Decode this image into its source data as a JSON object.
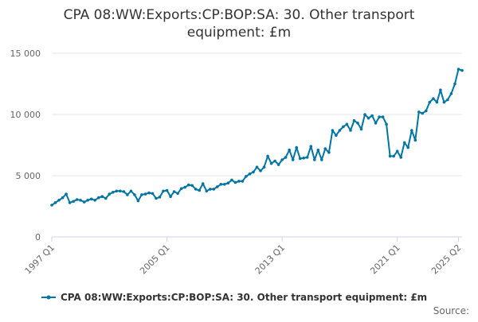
{
  "chart_data": {
    "type": "line",
    "title": "CPA 08:WW:Exports:CP:BOP:SA: 30. Other transport equipment: £m",
    "title_lines": [
      "CPA 08:WW:Exports:CP:BOP:SA: 30. Other transport",
      "equipment: £m"
    ],
    "xlabel": "",
    "ylabel": "",
    "grid": true,
    "legend_position": "bottom",
    "ylim": [
      0,
      15000
    ],
    "y_ticks": [
      {
        "value": 0,
        "label": "0"
      },
      {
        "value": 5000,
        "label": "5 000"
      },
      {
        "value": 10000,
        "label": "10 000"
      },
      {
        "value": 15000,
        "label": "15 000"
      }
    ],
    "x_ticks": [
      {
        "index": 0,
        "label": "1997 Q1"
      },
      {
        "index": 32,
        "label": "2005 Q1"
      },
      {
        "index": 64,
        "label": "2013 Q1"
      },
      {
        "index": 96,
        "label": "2021 Q1"
      },
      {
        "index": 113,
        "label": "2025 Q2"
      }
    ],
    "series": [
      {
        "name": "CPA 08:WW:Exports:CP:BOP:SA: 30. Other transport equipment: £m",
        "color": "#0075a3",
        "start": "1997 Q1",
        "frequency": "quarterly",
        "values": [
          2600,
          2800,
          3000,
          3200,
          3500,
          2800,
          2900,
          3050,
          3000,
          2850,
          3000,
          3100,
          3000,
          3200,
          3300,
          3150,
          3500,
          3650,
          3750,
          3750,
          3700,
          3450,
          3750,
          3450,
          2950,
          3450,
          3500,
          3600,
          3550,
          3150,
          3250,
          3750,
          3800,
          3300,
          3700,
          3550,
          3950,
          4050,
          4250,
          4200,
          3900,
          3800,
          4350,
          3750,
          3900,
          3900,
          4100,
          4300,
          4300,
          4400,
          4650,
          4450,
          4550,
          4550,
          4950,
          5150,
          5300,
          5700,
          5400,
          5700,
          6600,
          6000,
          6200,
          5900,
          6300,
          6500,
          7100,
          6300,
          7300,
          6400,
          6450,
          6500,
          7400,
          6300,
          7100,
          6300,
          7200,
          6900,
          8700,
          8300,
          8700,
          9000,
          9200,
          8700,
          9500,
          9300,
          8800,
          10000,
          9700,
          9900,
          9300,
          9800,
          9800,
          9200,
          6600,
          6600,
          7000,
          6500,
          7700,
          7300,
          8700,
          7900,
          10200,
          10100,
          10300,
          11000,
          11300,
          11000,
          12000,
          11000,
          11200,
          11700,
          12500,
          13700,
          13600
        ]
      }
    ]
  },
  "source_label": "Source:"
}
